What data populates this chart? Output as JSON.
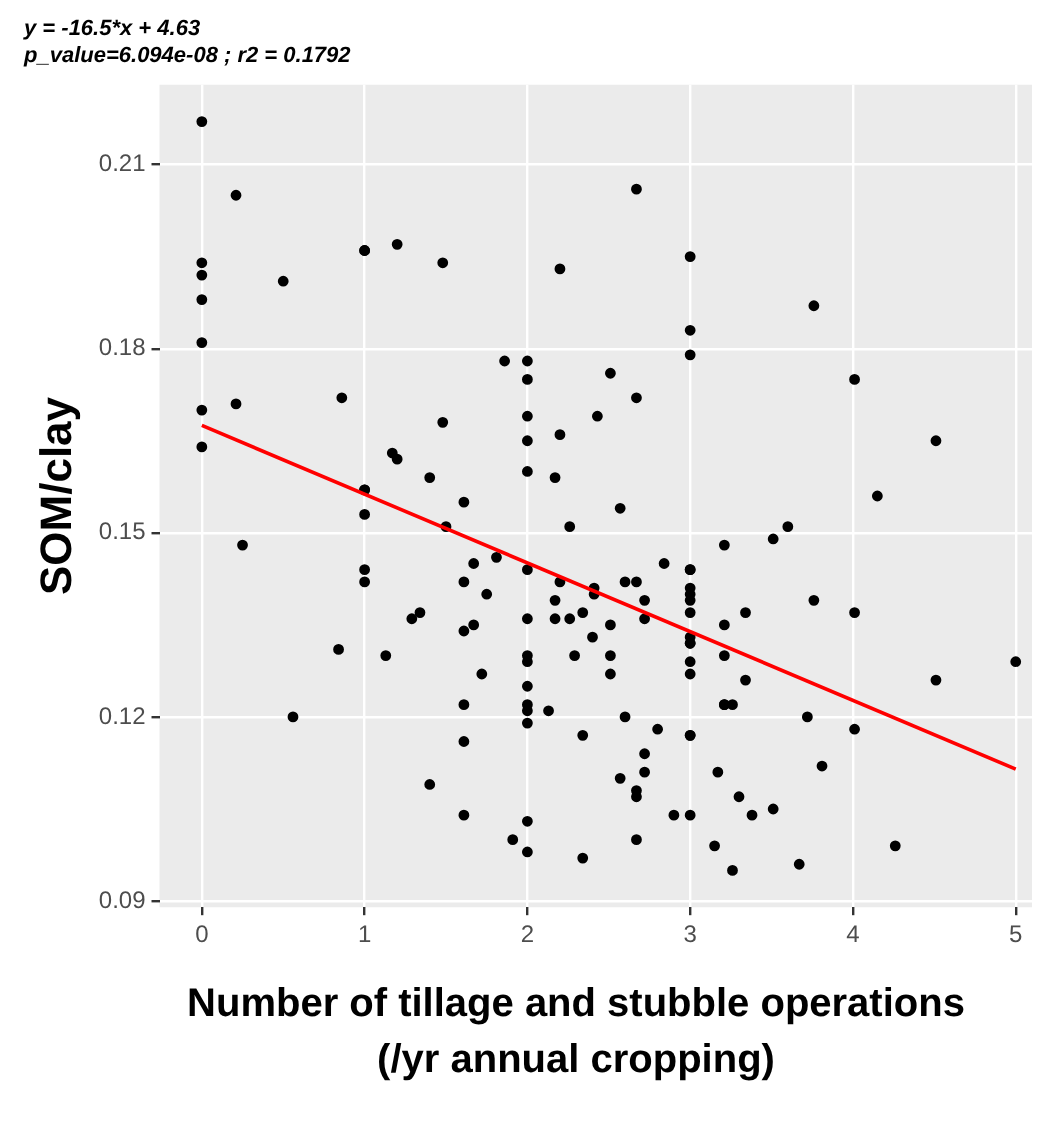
{
  "chart_data": {
    "type": "scatter",
    "title": "y = -16.5*x + 4.63",
    "subtitle": "p_value=6.094e-08 ; r2 = 0.1792",
    "xlabel": "Number of tillage and stubble operations (/yr annual cropping)",
    "ylabel": "SOM/clay",
    "xlim": [
      -0.26,
      5.1
    ],
    "xticks": [
      0,
      1,
      2,
      3,
      4,
      5
    ],
    "ylim": [
      0.089,
      0.223
    ],
    "yticks": [
      0.09,
      0.12,
      0.15,
      0.18,
      0.21
    ],
    "grid": true,
    "legend": false,
    "series": [
      {
        "color": "#000000",
        "marker": "circle",
        "x": [
          0,
          0.21,
          0,
          0,
          0,
          0,
          0,
          0,
          0.21,
          0.5,
          1,
          1,
          1.2,
          0.86,
          1.17,
          1.2,
          1.4,
          1,
          1,
          1.48,
          1.48,
          2.67,
          2.2,
          3,
          3,
          3,
          1.86,
          2,
          2,
          2.51,
          2.67,
          2,
          2.43,
          2,
          2.2,
          2,
          2.17,
          1.61,
          3.76,
          4.01,
          4.51,
          4.15,
          1,
          0.25,
          1,
          1,
          1.29,
          1.34,
          0.84,
          1.13,
          0.56,
          1.4,
          2.57,
          1.5,
          2.26,
          3.21,
          1.81,
          1.67,
          2,
          2.84,
          3,
          3,
          1.61,
          2.6,
          2.67,
          2.2,
          1.75,
          2.41,
          2.41,
          3,
          3,
          3,
          2.17,
          2.72,
          3,
          2.17,
          2.26,
          2.34,
          2,
          2.72,
          1.61,
          1.67,
          2.51,
          3.21,
          3,
          3,
          3,
          2.4,
          2.29,
          2,
          2.51,
          3.21,
          2,
          3,
          2.51,
          1.72,
          3,
          2,
          1.61,
          2,
          2,
          3.21,
          3.21,
          3.26,
          2.13,
          2.6,
          2,
          2.34,
          2.8,
          3,
          3,
          1.61,
          2.72,
          2.72,
          3.17,
          2.57,
          2.67,
          2.67,
          3.3,
          1.61,
          2,
          2.9,
          3,
          2.67,
          1.91,
          3.15,
          2,
          2.34,
          3.26,
          3.6,
          3.51,
          3.34,
          3.76,
          4.01,
          5,
          4.51,
          3.34,
          3.72,
          4.01,
          3.81,
          3.38,
          3.51,
          4.26,
          3.67
        ],
        "values": [
          0.217,
          0.205,
          0.194,
          0.192,
          0.188,
          0.181,
          0.17,
          0.164,
          0.171,
          0.191,
          0.196,
          0.196,
          0.197,
          0.172,
          0.163,
          0.162,
          0.159,
          0.157,
          0.157,
          0.194,
          0.168,
          0.206,
          0.193,
          0.195,
          0.183,
          0.179,
          0.178,
          0.178,
          0.175,
          0.176,
          0.172,
          0.169,
          0.169,
          0.165,
          0.166,
          0.16,
          0.159,
          0.155,
          0.187,
          0.175,
          0.165,
          0.156,
          0.153,
          0.148,
          0.144,
          0.142,
          0.136,
          0.137,
          0.131,
          0.13,
          0.12,
          0.109,
          0.154,
          0.151,
          0.151,
          0.148,
          0.146,
          0.145,
          0.144,
          0.145,
          0.144,
          0.144,
          0.142,
          0.142,
          0.142,
          0.142,
          0.14,
          0.141,
          0.14,
          0.141,
          0.14,
          0.139,
          0.139,
          0.139,
          0.137,
          0.136,
          0.136,
          0.137,
          0.136,
          0.136,
          0.134,
          0.135,
          0.135,
          0.135,
          0.133,
          0.132,
          0.132,
          0.133,
          0.13,
          0.13,
          0.13,
          0.13,
          0.129,
          0.129,
          0.127,
          0.127,
          0.127,
          0.125,
          0.122,
          0.122,
          0.121,
          0.122,
          0.122,
          0.122,
          0.121,
          0.12,
          0.119,
          0.117,
          0.118,
          0.117,
          0.117,
          0.116,
          0.114,
          0.111,
          0.111,
          0.11,
          0.108,
          0.107,
          0.107,
          0.104,
          0.103,
          0.104,
          0.104,
          0.1,
          0.1,
          0.099,
          0.098,
          0.097,
          0.095,
          0.151,
          0.149,
          0.137,
          0.139,
          0.137,
          0.129,
          0.126,
          0.126,
          0.12,
          0.118,
          0.112,
          0.104,
          0.105,
          0.099,
          0.096
        ]
      },
      {
        "type": "line",
        "color": "#ff0000",
        "marker": "none",
        "x": [
          0,
          5
        ],
        "values": [
          0.1675,
          0.1115
        ]
      }
    ]
  }
}
